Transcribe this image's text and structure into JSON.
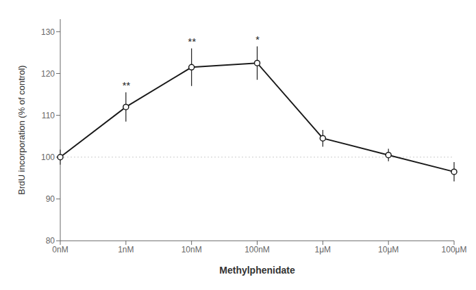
{
  "chart_data": {
    "type": "line",
    "categories": [
      "0nM",
      "1nM",
      "10nM",
      "100nM",
      "1μM",
      "10μM",
      "100μM"
    ],
    "values": [
      100.0,
      112.0,
      121.5,
      122.5,
      104.5,
      100.5,
      96.5
    ],
    "errors": [
      1.8,
      3.5,
      4.5,
      4.0,
      2.0,
      1.5,
      2.3
    ],
    "color": "#1a1a1a",
    "marker": "circle",
    "xlabel": "Methylphenidate",
    "ylabel": "BrdU incorporation (% of control)",
    "ylim": [
      80,
      133
    ],
    "yticks": [
      80,
      90,
      100,
      110,
      120,
      130
    ],
    "reference_lines": [
      {
        "y": 100,
        "line_style": "dotted"
      }
    ],
    "annotations": [
      {
        "category": "1nM",
        "text": "**"
      },
      {
        "category": "10nM",
        "text": "**"
      },
      {
        "category": "100nM",
        "text": "*"
      }
    ]
  }
}
